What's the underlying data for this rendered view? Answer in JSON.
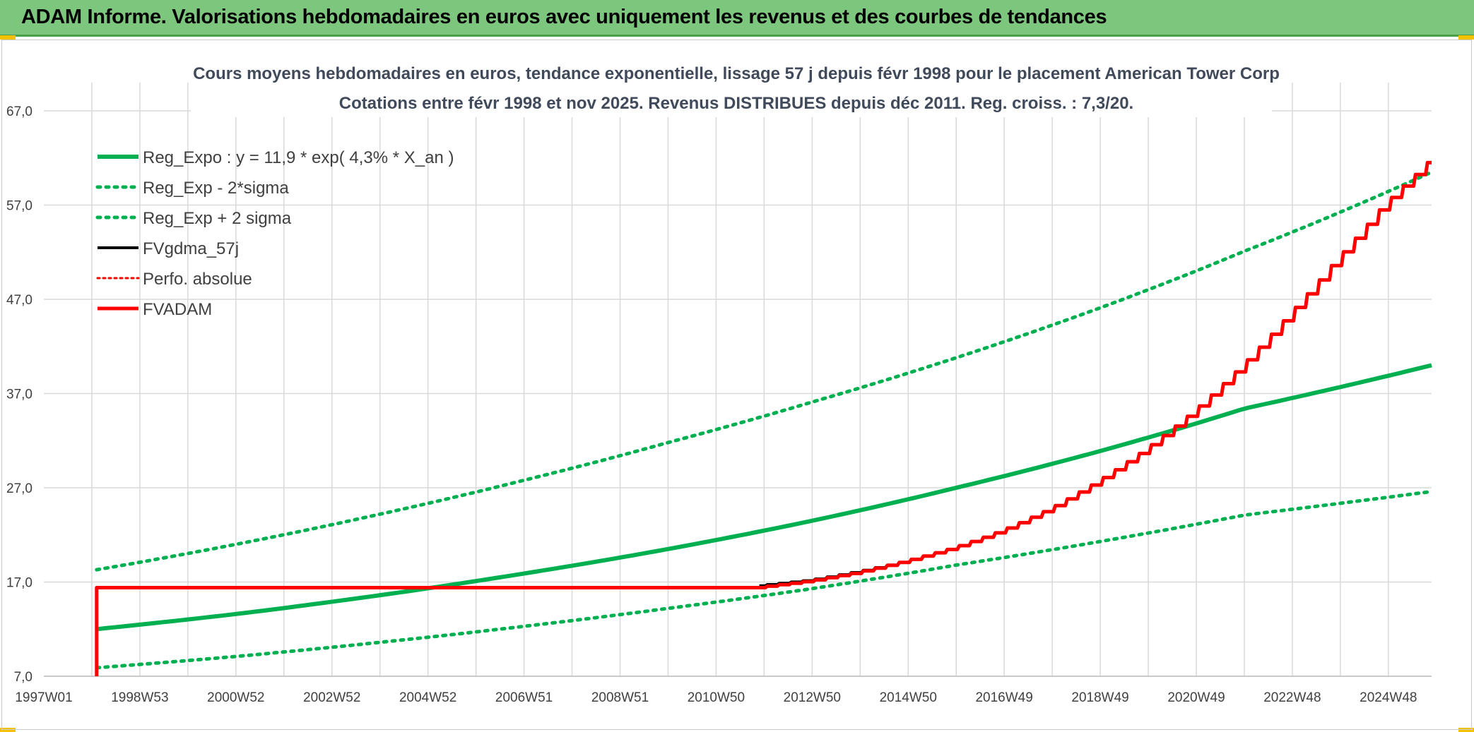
{
  "header": {
    "title": "ADAM Informe. Valorisations hebdomadaires en euros avec uniquement les revenus et des courbes de tendances"
  },
  "colors": {
    "banner": "#7dc67d",
    "green": "#00b050",
    "red": "#ff0000",
    "black": "#000000",
    "grid": "#d9d9d9"
  },
  "chart_data": {
    "type": "line",
    "title_lines": [
      "Cours moyens hebdomadaires en euros, tendance exponentielle, lissage 57 j depuis févr 1998 pour le placement American Tower Corp",
      "Cotations entre févr 1998 et nov 2025. Revenus DISTRIBUES depuis déc 2011. Reg. croiss. : 7,3/20."
    ],
    "xlabel": "",
    "ylabel": "",
    "xlim": [
      1997.0,
      2025.9
    ],
    "ylim": [
      7.0,
      67.0
    ],
    "y_ticks": [
      7.0,
      17.0,
      27.0,
      37.0,
      47.0,
      57.0,
      67.0
    ],
    "y_tick_labels": [
      "7,0",
      "17,0",
      "27,0",
      "37,0",
      "47,0",
      "57,0",
      "67,0"
    ],
    "x_ticks": [
      1997.0,
      1999.0,
      2001.0,
      2003.0,
      2005.0,
      2007.0,
      2009.0,
      2011.0,
      2013.0,
      2015.0,
      2017.0,
      2019.0,
      2021.0,
      2023.0,
      2025.0
    ],
    "x_tick_labels": [
      "1997W01",
      "1998W53",
      "2000W52",
      "2002W52",
      "2004W52",
      "2006W51",
      "2008W51",
      "2010W50",
      "2012W50",
      "2014W50",
      "2016W49",
      "2018W49",
      "2020W49",
      "2022W48",
      "2024W48"
    ],
    "legend_position": "top-left",
    "series": [
      {
        "name": "Reg_Expo : y = 11,9 * exp( 4,3% *  X_an )",
        "style": "solid-green",
        "x": [
          1998.1,
          2001.0,
          2004.0,
          2007.0,
          2010.0,
          2013.0,
          2016.0,
          2019.0,
          2022.0,
          2025.9
        ],
        "values": [
          12.0,
          13.6,
          15.6,
          17.9,
          20.5,
          23.5,
          27.0,
          30.9,
          35.4,
          40.0
        ]
      },
      {
        "name": "Reg_Exp - 2*sigma",
        "style": "dotted-green",
        "x": [
          1998.1,
          2001.0,
          2004.0,
          2007.0,
          2010.0,
          2013.0,
          2016.0,
          2019.0,
          2022.0,
          2025.9
        ],
        "values": [
          7.9,
          9.1,
          10.6,
          12.3,
          14.2,
          16.3,
          18.8,
          21.3,
          24.1,
          26.6
        ]
      },
      {
        "name": "Reg_Exp + 2 sigma",
        "style": "dotted-green",
        "x": [
          1998.1,
          2001.0,
          2004.0,
          2007.0,
          2010.0,
          2013.0,
          2016.0,
          2019.0,
          2022.0,
          2025.9
        ],
        "values": [
          18.3,
          21.0,
          24.2,
          27.8,
          31.8,
          36.1,
          40.8,
          46.1,
          52.1,
          60.5
        ]
      },
      {
        "name": "FVgdma_57j",
        "style": "solid-black",
        "x": [
          2011.9,
          2013.0,
          2014.0,
          2015.0,
          2016.0,
          2017.0,
          2018.0,
          2019.0,
          2020.0,
          2021.0,
          2022.0,
          2023.0,
          2024.0,
          2025.0,
          2025.9
        ],
        "values": [
          16.6,
          17.2,
          18.1,
          19.2,
          20.6,
          22.4,
          24.7,
          27.6,
          31.0,
          35.0,
          39.8,
          45.3,
          51.2,
          57.1,
          61.5
        ]
      },
      {
        "name": "Perfo. absolue",
        "style": "dotted-red",
        "x": [],
        "values": []
      },
      {
        "name": "FVADAM",
        "style": "solid-red",
        "x": [
          1998.1,
          1998.1,
          2011.9,
          2013.0,
          2014.0,
          2015.0,
          2016.0,
          2017.0,
          2018.0,
          2019.0,
          2020.0,
          2021.0,
          2022.0,
          2023.0,
          2024.0,
          2025.0,
          2025.9
        ],
        "values": [
          7.0,
          16.4,
          16.4,
          17.1,
          18.0,
          19.2,
          20.6,
          22.4,
          24.7,
          27.6,
          31.0,
          35.0,
          39.8,
          45.3,
          51.2,
          57.1,
          61.5
        ]
      }
    ]
  }
}
